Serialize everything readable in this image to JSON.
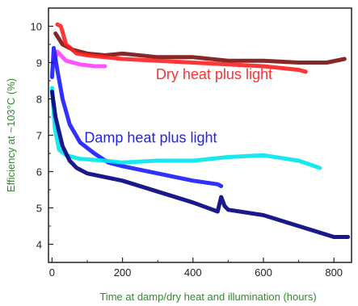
{
  "chart_data": {
    "type": "line",
    "title": "",
    "xlabel": "Time at damp/dry heat and illumination (hours)",
    "ylabel": "Efficiency at ~103°C (%)",
    "xlim": [
      -10,
      850
    ],
    "ylim": [
      3.5,
      10.5
    ],
    "xticks": [
      0,
      200,
      400,
      600,
      800
    ],
    "yticks": [
      4,
      5,
      6,
      7,
      8,
      9,
      10
    ],
    "grid": false,
    "legend": "none",
    "annotations": [
      {
        "text": "Dry heat plus light",
        "x": 460,
        "y": 8.55,
        "color": "#ff3030"
      },
      {
        "text": "Damp heat plus light",
        "x": 280,
        "y": 6.8,
        "color": "#2020ff"
      }
    ],
    "series": [
      {
        "color": "#7a0f0f",
        "x": [
          10,
          30,
          60,
          100,
          150,
          200,
          300,
          400,
          500,
          600,
          700,
          780,
          830
        ],
        "y": [
          9.8,
          9.5,
          9.35,
          9.25,
          9.2,
          9.25,
          9.15,
          9.15,
          9.05,
          9.05,
          9.0,
          9.0,
          9.1
        ]
      },
      {
        "color": "#ff2020",
        "x": [
          15,
          25,
          40,
          70,
          100,
          150,
          200,
          300,
          400,
          500,
          600,
          700,
          720
        ],
        "y": [
          10.05,
          10.0,
          9.5,
          9.25,
          9.2,
          9.15,
          9.1,
          9.05,
          9.0,
          8.95,
          8.9,
          8.8,
          8.75
        ]
      },
      {
        "color": "#ff40ff",
        "x": [
          5,
          15,
          40,
          80,
          120,
          150
        ],
        "y": [
          9.0,
          9.3,
          9.05,
          8.95,
          8.9,
          8.9
        ]
      },
      {
        "color": "#1a1aff",
        "x": [
          0,
          5,
          15,
          30,
          50,
          80,
          120,
          160,
          200,
          300,
          400,
          470,
          480
        ],
        "y": [
          8.6,
          9.4,
          8.8,
          8.0,
          7.3,
          6.8,
          6.5,
          6.25,
          6.15,
          5.95,
          5.75,
          5.65,
          5.6
        ]
      },
      {
        "color": "#00e5ee",
        "x": [
          0,
          8,
          20,
          40,
          80,
          150,
          200,
          300,
          400,
          500,
          600,
          700,
          760
        ],
        "y": [
          8.3,
          7.2,
          6.6,
          6.45,
          6.35,
          6.3,
          6.25,
          6.3,
          6.3,
          6.4,
          6.45,
          6.3,
          6.1
        ]
      },
      {
        "color": "#000080",
        "x": [
          0,
          10,
          30,
          50,
          70,
          100,
          150,
          200,
          300,
          400,
          470,
          480,
          490,
          500,
          600,
          700,
          800,
          840
        ],
        "y": [
          8.2,
          7.5,
          6.7,
          6.3,
          6.1,
          5.95,
          5.85,
          5.75,
          5.45,
          5.15,
          4.9,
          5.3,
          5.05,
          4.95,
          4.8,
          4.5,
          4.2,
          4.2
        ]
      }
    ]
  }
}
